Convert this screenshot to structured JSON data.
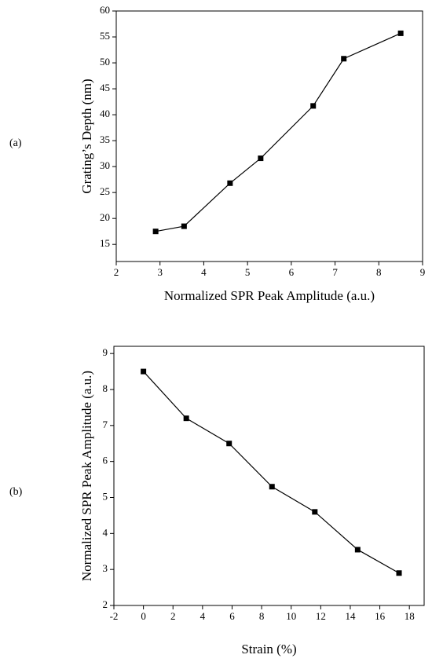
{
  "chart_data": [
    {
      "type": "line",
      "panel_label": "(a)",
      "x_label": "Normalized SPR Peak Amplitude (a.u.)",
      "y_label": "Grating’s Depth (nm)",
      "x": [
        2.9,
        3.55,
        4.6,
        5.3,
        6.5,
        7.2,
        8.5
      ],
      "series": [
        {
          "color": "#000000",
          "values": [
            17.5,
            18.5,
            26.8,
            31.6,
            41.7,
            50.8,
            55.7
          ]
        }
      ],
      "xlim": [
        2,
        9
      ],
      "xticks": [
        2,
        3,
        4,
        5,
        6,
        7,
        8,
        9
      ],
      "ylim": [
        11.7,
        60
      ],
      "yticks": [
        15,
        20,
        25,
        30,
        35,
        40,
        45,
        50,
        55,
        60
      ]
    },
    {
      "type": "line",
      "panel_label": "(b)",
      "x_label": "Strain (%)",
      "y_label": "Normalized SPR Peak Amplitude (a.u.)",
      "x": [
        0,
        2.9,
        5.8,
        8.7,
        11.6,
        14.5,
        17.3
      ],
      "series": [
        {
          "color": "#000000",
          "values": [
            8.5,
            7.2,
            6.5,
            5.3,
            4.6,
            3.55,
            2.9
          ]
        }
      ],
      "xlim": [
        -2,
        19
      ],
      "xticks": [
        -2,
        0,
        2,
        4,
        6,
        8,
        10,
        12,
        14,
        16,
        18
      ],
      "ylim": [
        2,
        9.2
      ],
      "yticks": [
        2,
        3,
        4,
        5,
        6,
        7,
        8,
        9
      ]
    }
  ]
}
